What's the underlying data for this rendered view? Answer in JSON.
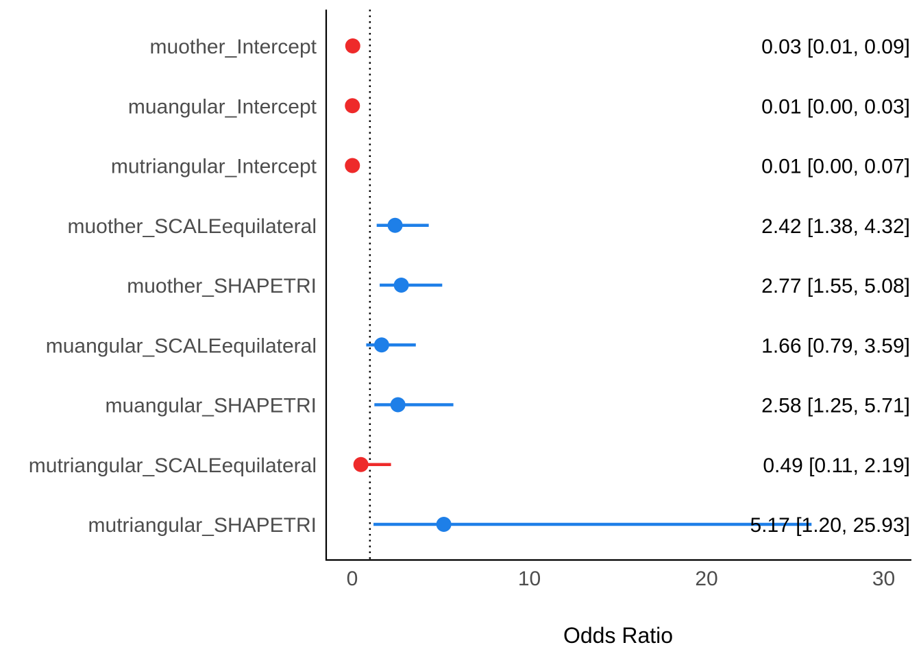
{
  "chart_data": {
    "type": "forest",
    "xlabel": "Odds Ratio",
    "xlim": [
      -1.5,
      31
    ],
    "xticks": [
      0,
      10,
      20,
      30
    ],
    "xtick_labels": [
      "0",
      "10",
      "20",
      "30"
    ],
    "reference_line": 1,
    "colors": {
      "positive": "#1e7fe8",
      "negative": "#ee2a2a"
    },
    "rows": [
      {
        "term": "muother_Intercept",
        "or": 0.03,
        "low": 0.01,
        "high": 0.09,
        "label": "0.03 [0.01, 0.09]"
      },
      {
        "term": "muangular_Intercept",
        "or": 0.01,
        "low": 0.0,
        "high": 0.03,
        "label": "0.01 [0.00, 0.03]"
      },
      {
        "term": "mutriangular_Intercept",
        "or": 0.01,
        "low": 0.0,
        "high": 0.07,
        "label": "0.01 [0.00, 0.07]"
      },
      {
        "term": "muother_SCALEequilateral",
        "or": 2.42,
        "low": 1.38,
        "high": 4.32,
        "label": "2.42 [1.38, 4.32]"
      },
      {
        "term": "muother_SHAPETRI",
        "or": 2.77,
        "low": 1.55,
        "high": 5.08,
        "label": "2.77 [1.55, 5.08]"
      },
      {
        "term": "muangular_SCALEequilateral",
        "or": 1.66,
        "low": 0.79,
        "high": 3.59,
        "label": "1.66 [0.79, 3.59]"
      },
      {
        "term": "muangular_SHAPETRI",
        "or": 2.58,
        "low": 1.25,
        "high": 5.71,
        "label": "2.58 [1.25, 5.71]"
      },
      {
        "term": "mutriangular_SCALEequilateral",
        "or": 0.49,
        "low": 0.11,
        "high": 2.19,
        "label": "0.49 [0.11, 2.19]"
      },
      {
        "term": "mutriangular_SHAPETRI",
        "or": 5.17,
        "low": 1.2,
        "high": 25.93,
        "label": "5.17 [1.20, 25.93]"
      }
    ]
  }
}
